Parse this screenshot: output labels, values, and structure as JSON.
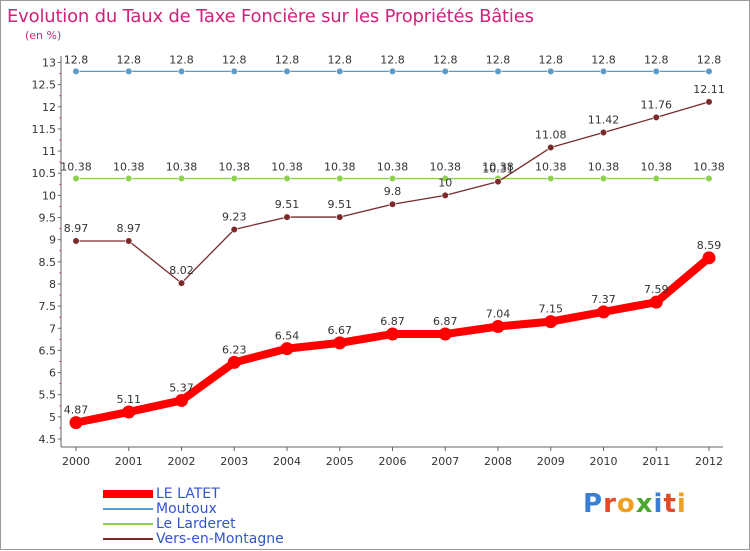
{
  "title": "Evolution du Taux de Taxe Foncière sur les Propriétés Bâties",
  "unit": "(en %)",
  "logo": {
    "text": "Proxiti",
    "letter_colors": [
      "#3a7fd6",
      "#e34a2a",
      "#f0a020",
      "#4aa830",
      "#3a7fd6",
      "#e34a2a",
      "#f0a020"
    ]
  },
  "chart_data": {
    "type": "line",
    "title": "Evolution du Taux de Taxe Foncière sur les Propriétés Bâties",
    "ylabel": "(en %)",
    "xlabel": "",
    "x": [
      "2000",
      "2001",
      "2002",
      "2003",
      "2004",
      "2005",
      "2006",
      "2007",
      "2008",
      "2009",
      "2010",
      "2011",
      "2012"
    ],
    "ylim": [
      4.5,
      13
    ],
    "yticks": [
      "4.5",
      "5",
      "5.5",
      "6",
      "6.5",
      "7",
      "7.5",
      "8",
      "8.5",
      "9",
      "9.5",
      "10",
      "10.5",
      "11",
      "11.5",
      "12",
      "12.5",
      "13"
    ],
    "grid": false,
    "legend_position": "bottom-left",
    "series": [
      {
        "name": "LE LATET",
        "color": "#ff0000",
        "values": [
          4.87,
          5.11,
          5.37,
          6.23,
          6.54,
          6.67,
          6.87,
          6.87,
          7.04,
          7.15,
          7.37,
          7.59,
          8.59
        ],
        "labels": [
          "4.87",
          "5.11",
          "5.37",
          "6.23",
          "6.54",
          "6.67",
          "6.87",
          "6.87",
          "7.04",
          "7.15",
          "7.37",
          "7.59",
          "8.59"
        ]
      },
      {
        "name": "Moutoux",
        "color": "#5b9bc8",
        "values": [
          12.8,
          12.8,
          12.8,
          12.8,
          12.8,
          12.8,
          12.8,
          12.8,
          12.8,
          12.8,
          12.8,
          12.8,
          12.8
        ],
        "labels": [
          "12.8",
          "12.8",
          "12.8",
          "12.8",
          "12.8",
          "12.8",
          "12.8",
          "12.8",
          "12.8",
          "12.8",
          "12.8",
          "12.8",
          "12.8"
        ]
      },
      {
        "name": "Le Larderet",
        "color": "#8fd14f",
        "values": [
          10.38,
          10.38,
          10.38,
          10.38,
          10.38,
          10.38,
          10.38,
          10.38,
          10.38,
          10.38,
          10.38,
          10.38,
          10.38
        ],
        "labels": [
          "10.38",
          "10.38",
          "10.38",
          "10.38",
          "10.38",
          "10.38",
          "10.38",
          "10.38",
          "10.38",
          "10.38",
          "10.38",
          "10.38",
          "10.38"
        ]
      },
      {
        "name": "Vers-en-Montagne",
        "color": "#7a2a2a",
        "values": [
          8.97,
          8.97,
          8.02,
          9.23,
          9.51,
          9.51,
          9.8,
          10.0,
          10.31,
          11.08,
          11.42,
          11.76,
          12.11
        ],
        "labels": [
          "8.97",
          "8.97",
          "8.02",
          "9.23",
          "9.51",
          "9.51",
          "9.8",
          "10",
          "10.31",
          "11.08",
          "11.42",
          "11.76",
          "12.11"
        ]
      }
    ]
  }
}
